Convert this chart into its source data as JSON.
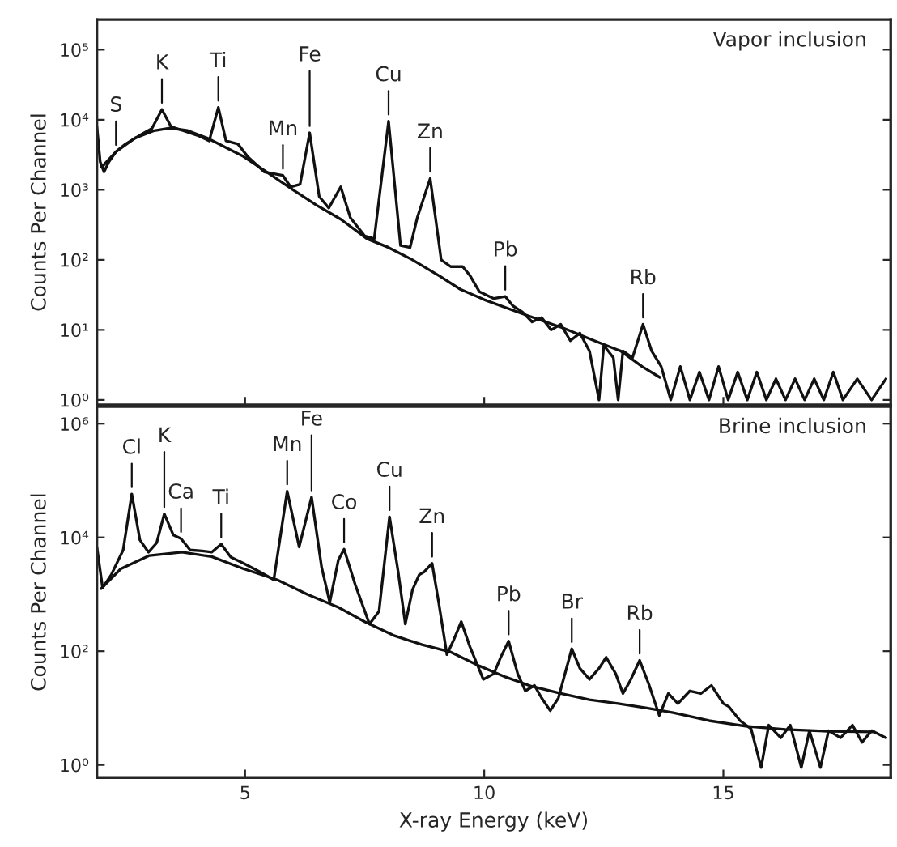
{
  "chart_data": [
    {
      "type": "line",
      "ylabel": "Counts Per Channel",
      "log": "y",
      "xlim": [
        1.9,
        18.5
      ],
      "xticks": [
        5,
        10,
        15
      ],
      "ylim": [
        0.85,
        270000
      ],
      "yticks": [
        {
          "value": 1,
          "label": "10⁰"
        },
        {
          "value": 10,
          "label": "10¹"
        },
        {
          "value": 100,
          "label": "10²"
        },
        {
          "value": 1000,
          "label": "10³"
        },
        {
          "value": 10000,
          "label": "10⁴"
        },
        {
          "value": 100000,
          "label": "10⁵"
        }
      ],
      "tick_labels": "y",
      "series": [
        {
          "color": "#111111",
          "x": [
            1.9,
            1.97,
            2.05,
            2.15,
            2.3,
            2.5,
            2.8,
            3.05,
            3.26,
            3.45,
            3.7,
            4.0,
            4.25,
            4.44,
            4.6,
            4.85,
            5.05,
            5.4,
            5.79,
            5.95,
            6.15,
            6.35,
            6.55,
            6.75,
            7.0,
            7.2,
            7.5,
            7.7,
            8.0,
            8.25,
            8.45,
            8.6,
            8.87,
            9.1,
            9.3,
            9.55,
            9.7,
            9.9,
            10.2,
            10.44,
            10.6,
            10.8,
            11.0,
            11.2,
            11.4,
            11.6,
            11.8,
            12.0,
            12.2,
            12.4,
            12.5,
            12.7,
            12.8,
            12.9,
            13.1,
            13.32,
            13.5,
            13.7,
            13.9,
            14.1,
            14.3,
            14.5,
            14.7,
            14.9,
            15.1,
            15.3,
            15.5,
            15.7,
            15.9,
            16.1,
            16.3,
            16.5,
            16.7,
            16.9,
            17.1,
            17.3,
            17.5,
            17.8,
            18.1,
            18.4
          ],
          "values": [
            8000,
            2500,
            1800,
            2500,
            3500,
            4500,
            6000,
            7500,
            14000,
            8000,
            7000,
            6000,
            5000,
            15000,
            5000,
            4500,
            3000,
            1800,
            1600,
            1100,
            1200,
            6500,
            800,
            550,
            1100,
            400,
            220,
            200,
            9500,
            160,
            150,
            400,
            1450,
            100,
            80,
            80,
            60,
            35,
            28,
            30,
            22,
            18,
            13,
            15,
            10,
            12,
            7,
            9,
            5,
            1,
            6,
            4,
            1,
            5,
            4,
            12,
            5,
            3,
            1,
            3,
            1,
            2.5,
            1,
            3,
            1,
            2.5,
            1,
            2.5,
            1,
            2,
            1,
            2,
            1,
            2,
            1,
            2.5,
            1,
            2,
            1,
            2
          ]
        },
        {
          "color": "#111111",
          "x": [
            2.0,
            2.3,
            2.7,
            3.1,
            3.43,
            3.8,
            4.2,
            4.6,
            4.96,
            5.5,
            6.0,
            6.5,
            7.0,
            7.55,
            8.0,
            8.5,
            9.08,
            9.5,
            10.0,
            10.8,
            11.67,
            12.3,
            12.85,
            13.3,
            13.67
          ],
          "values": [
            2100,
            3500,
            5500,
            7000,
            7600,
            7000,
            5500,
            4000,
            3000,
            1700,
            1000,
            600,
            380,
            200,
            150,
            100,
            58,
            38,
            27,
            17,
            10.5,
            7,
            5,
            3,
            2.1
          ]
        }
      ],
      "annotations": [
        "Vapor inclusion",
        {
          "text": "S",
          "x": 2.3,
          "y": 3500
        },
        {
          "text": "K",
          "x": 3.26,
          "y": 14000
        },
        {
          "text": "Ti",
          "x": 4.44,
          "y": 15000
        },
        {
          "text": "Mn",
          "x": 5.79,
          "y": 1600
        },
        {
          "text": "Fe",
          "x": 6.35,
          "y": 6500
        },
        {
          "text": "Cu",
          "x": 8.0,
          "y": 9500
        },
        {
          "text": "Zn",
          "x": 8.87,
          "y": 1450
        },
        {
          "text": "Pb",
          "x": 10.44,
          "y": 30
        },
        {
          "text": "Rb",
          "x": 13.32,
          "y": 12
        }
      ]
    },
    {
      "type": "line",
      "xlabel": "X-ray Energy (keV)",
      "ylabel": "Counts Per Channel",
      "log": "y",
      "xlim": [
        1.9,
        18.5
      ],
      "xticks": [
        5,
        10,
        15
      ],
      "ylim": [
        0.6,
        2000000
      ],
      "yticks": [
        {
          "value": 1,
          "label": "10⁰"
        },
        {
          "value": 100,
          "label": "10²"
        },
        {
          "value": 10000,
          "label": "10⁴"
        },
        {
          "value": 1000000,
          "label": "10⁶"
        }
      ],
      "series": [
        {
          "color": "#111111",
          "x": [
            1.9,
            2.02,
            2.2,
            2.45,
            2.63,
            2.8,
            2.98,
            3.15,
            3.31,
            3.5,
            3.66,
            3.85,
            4.1,
            4.3,
            4.5,
            4.7,
            4.97,
            5.3,
            5.6,
            5.88,
            6.13,
            6.39,
            6.6,
            6.77,
            6.95,
            7.07,
            7.3,
            7.6,
            7.8,
            8.02,
            8.2,
            8.35,
            8.5,
            8.64,
            8.75,
            8.91,
            9.05,
            9.22,
            9.35,
            9.52,
            9.7,
            9.98,
            10.2,
            10.35,
            10.51,
            10.7,
            10.86,
            11.05,
            11.2,
            11.38,
            11.55,
            11.83,
            12.0,
            12.2,
            12.4,
            12.55,
            12.75,
            12.9,
            13.05,
            13.25,
            13.45,
            13.66,
            13.85,
            14.05,
            14.3,
            14.53,
            14.75,
            15.0,
            15.12,
            15.35,
            15.58,
            15.79,
            15.95,
            16.2,
            16.4,
            16.63,
            16.8,
            17.03,
            17.2,
            17.45,
            17.7,
            17.9,
            18.1,
            18.4
          ],
          "values": [
            6800,
            1300,
            2200,
            6000,
            58000,
            9000,
            5500,
            8000,
            26000,
            11000,
            9500,
            6000,
            5800,
            5500,
            7600,
            4500,
            3500,
            2500,
            1800,
            65000,
            6800,
            51000,
            3000,
            720,
            4000,
            6200,
            1500,
            300,
            500,
            23000,
            2500,
            300,
            1200,
            2200,
            2500,
            3500,
            700,
            87,
            150,
            330,
            120,
            32,
            40,
            80,
            150,
            40,
            20,
            25,
            15,
            9,
            15,
            110,
            50,
            32,
            50,
            78,
            40,
            18,
            30,
            69,
            25,
            7.4,
            18,
            12,
            20,
            18,
            25,
            12,
            10.5,
            6,
            4.3,
            0.9,
            5,
            3,
            5,
            0.9,
            4,
            0.9,
            4,
            3,
            5,
            2.5,
            4,
            3
          ]
        },
        {
          "color": "#111111",
          "x": [
            1.99,
            2.4,
            3.0,
            3.68,
            4.3,
            4.97,
            5.67,
            6.3,
            6.95,
            7.5,
            8.1,
            8.7,
            9.28,
            9.9,
            10.45,
            11.0,
            11.6,
            12.2,
            12.8,
            13.4,
            13.95,
            14.7,
            15.47,
            16.3,
            17.2,
            18.15
          ],
          "values": [
            1260,
            2800,
            4800,
            5500,
            4600,
            2800,
            1800,
            1000,
            590,
            330,
            190,
            130,
            98,
            55,
            35,
            24,
            18,
            14,
            12,
            10,
            8.3,
            6,
            4.8,
            4.2,
            3.9,
            3.8
          ]
        }
      ],
      "annotations": [
        "Brine inclusion",
        {
          "text": "Cl",
          "x": 2.63,
          "y": 58000
        },
        {
          "text": "K",
          "x": 3.31,
          "y": 26000
        },
        {
          "text": "Ca",
          "x": 3.66,
          "y": 9500
        },
        {
          "text": "Ti",
          "x": 4.5,
          "y": 7600
        },
        {
          "text": "Mn",
          "x": 5.88,
          "y": 65000
        },
        {
          "text": "Fe",
          "x": 6.39,
          "y": 51000
        },
        {
          "text": "Co",
          "x": 7.07,
          "y": 6200
        },
        {
          "text": "Cu",
          "x": 8.02,
          "y": 23000
        },
        {
          "text": "Zn",
          "x": 8.91,
          "y": 3500
        },
        {
          "text": "Pb",
          "x": 10.51,
          "y": 150
        },
        {
          "text": "Br",
          "x": 11.83,
          "y": 110
        },
        {
          "text": "Rb",
          "x": 13.25,
          "y": 69
        }
      ]
    }
  ]
}
